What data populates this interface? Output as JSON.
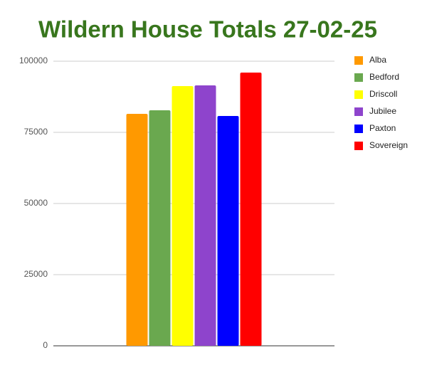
{
  "chart_data": {
    "type": "bar",
    "title": "Wildern House Totals 27-02-25",
    "categories": [
      null
    ],
    "series": [
      {
        "name": "Alba",
        "color": "#ff9900",
        "values": [
          81500
        ]
      },
      {
        "name": "Bedford",
        "color": "#6aa84f",
        "values": [
          82750
        ]
      },
      {
        "name": "Driscoll",
        "color": "#ffff00",
        "values": [
          91250
        ]
      },
      {
        "name": "Jubilee",
        "color": "#8e44cc",
        "values": [
          91500
        ]
      },
      {
        "name": "Paxton",
        "color": "#0000ff",
        "values": [
          80750
        ]
      },
      {
        "name": "Sovereign",
        "color": "#ff0000",
        "values": [
          96000
        ]
      }
    ],
    "ylim": [
      0,
      100000
    ],
    "yticks": [
      0,
      25000,
      50000,
      75000,
      100000
    ],
    "grid": true,
    "legend": "right"
  }
}
